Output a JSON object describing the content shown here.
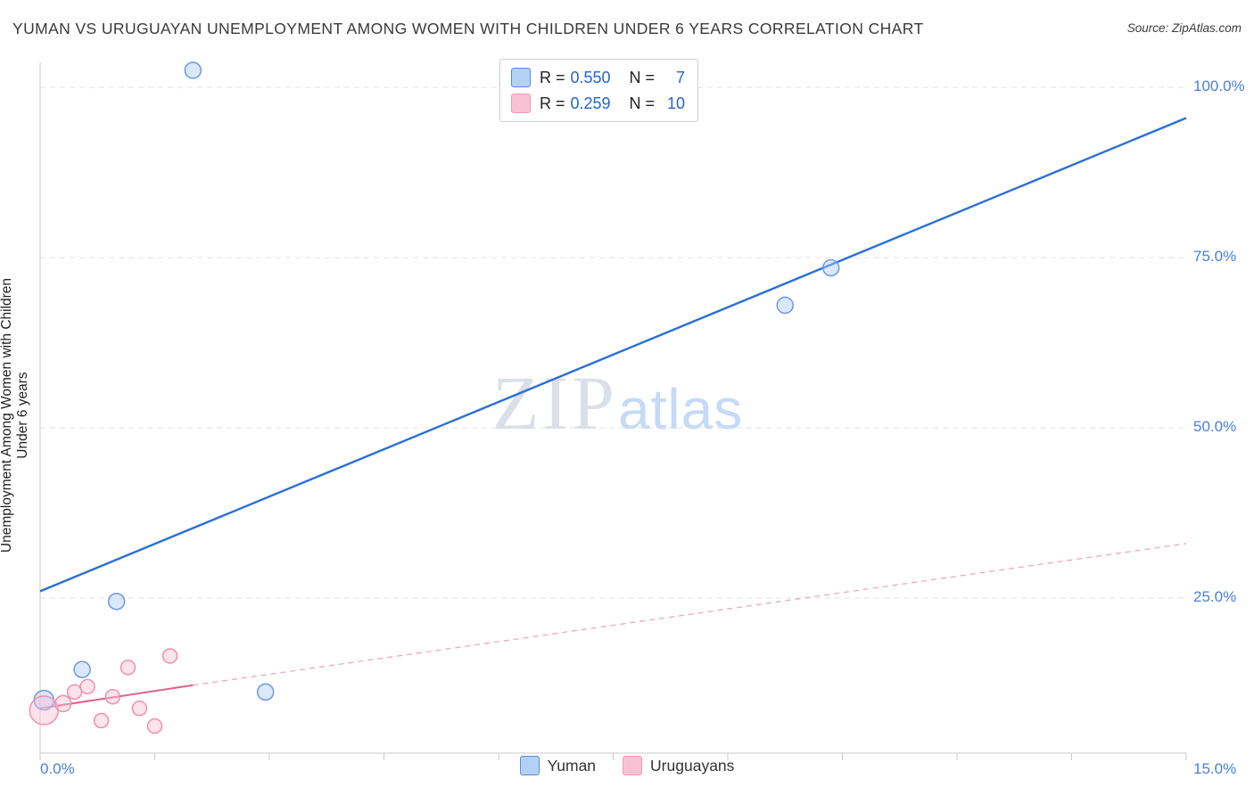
{
  "header": {
    "title": "YUMAN VS URUGUAYAN UNEMPLOYMENT AMONG WOMEN WITH CHILDREN UNDER 6 YEARS CORRELATION CHART",
    "source": "Source: ZipAtlas.com"
  },
  "watermark": {
    "part1": "ZIP",
    "part2": "atlas"
  },
  "axes": {
    "y_label": "Unemployment Among Women with Children Under 6 years",
    "y_ticks": [
      {
        "label": "100.0%",
        "value": 100
      },
      {
        "label": "75.0%",
        "value": 75
      },
      {
        "label": "50.0%",
        "value": 50
      },
      {
        "label": "25.0%",
        "value": 25
      }
    ],
    "x_ticks": [
      {
        "label": "0.0%",
        "value": 0
      },
      {
        "label": "15.0%",
        "value": 15
      }
    ]
  },
  "legend_box": {
    "rows": [
      {
        "r_label": "R =",
        "r_value": "0.550",
        "n_label": "N =",
        "n_value": "7"
      },
      {
        "r_label": "R =",
        "r_value": "0.259",
        "n_label": "N =",
        "n_value": "10"
      }
    ]
  },
  "bottom_legend": [
    {
      "label": "Yuman"
    },
    {
      "label": "Uruguayans"
    }
  ],
  "colors": {
    "yuman_fill": "#aecbf5",
    "yuman_stroke": "#6b9ae0",
    "yuman_line": "#2970d8",
    "uruguayan_fill": "#f9c2d4",
    "uruguayan_stroke": "#ef8fb0",
    "uruguayan_line": "#e0608e",
    "tick_text": "#4a7fd6"
  },
  "chart_data": {
    "type": "scatter",
    "xlim": [
      0,
      15
    ],
    "ylim": [
      0,
      105
    ],
    "x_unit": "%",
    "y_unit": "%",
    "grid": "horizontal-dashed",
    "legend_position": "top-center",
    "y_gridlines": [
      25,
      50,
      75,
      100
    ],
    "x_tick_step": 1.5,
    "series": [
      {
        "name": "Yuman",
        "r": 0.55,
        "n": 7,
        "points": [
          [
            0.05,
            10.0,
            11
          ],
          [
            0.55,
            14.5,
            9
          ],
          [
            1.0,
            24.5,
            9
          ],
          [
            2.0,
            102.5,
            9
          ],
          [
            2.95,
            11.2,
            9
          ],
          [
            9.75,
            68.0,
            9
          ],
          [
            10.35,
            73.5,
            9
          ]
        ]
      },
      {
        "name": "Uruguayans",
        "r": 0.259,
        "n": 10,
        "points": [
          [
            0.05,
            8.5,
            16
          ],
          [
            0.3,
            9.5,
            9
          ],
          [
            0.45,
            11.2,
            8
          ],
          [
            0.62,
            12.0,
            8
          ],
          [
            0.8,
            7.0,
            8
          ],
          [
            0.95,
            10.5,
            8
          ],
          [
            1.15,
            14.8,
            8
          ],
          [
            1.3,
            8.8,
            8
          ],
          [
            1.5,
            6.2,
            8
          ],
          [
            1.7,
            16.5,
            8
          ]
        ]
      }
    ],
    "trendlines": [
      {
        "name": "yuman-trendline",
        "x1": 0,
        "y1": 26.0,
        "x2": 15,
        "y2": 95.5,
        "width": 2.4,
        "dash": ""
      },
      {
        "name": "uruguayan-trendline-solid",
        "x1": 0,
        "y1": 8.8,
        "x2": 2.0,
        "y2": 12.2,
        "width": 2.0,
        "dash": ""
      },
      {
        "name": "uruguayan-trendline-extrapolated",
        "x1": 2.0,
        "y1": 12.2,
        "x2": 15,
        "y2": 33.0,
        "width": 1.3,
        "dash": "6 5"
      }
    ]
  }
}
